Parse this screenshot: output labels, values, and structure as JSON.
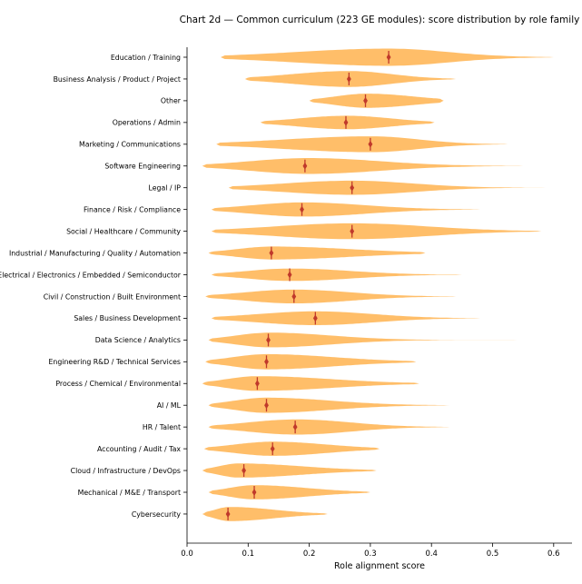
{
  "chart_data": {
    "type": "violin",
    "title": "Chart 2d — Common curriculum (223 GE modules): score distribution by role family",
    "xlabel": "Role alignment score",
    "ylabel": "",
    "xlim": [
      0.0,
      0.63
    ],
    "xticks": [
      "0.0",
      "0.1",
      "0.2",
      "0.3",
      "0.4",
      "0.5",
      "0.6"
    ],
    "orientation": "horizontal",
    "grid": false,
    "fill_color": "#ffb554",
    "median_marker_color": "#c0392b",
    "categories": [
      {
        "name": "Education / Training",
        "min": 0.055,
        "max": 0.6,
        "median": 0.33,
        "mode": 0.33,
        "width": 1.0,
        "tail": 0.36
      },
      {
        "name": "Business Analysis / Product / Project",
        "min": 0.095,
        "max": 0.44,
        "median": 0.265,
        "mode": 0.265,
        "width": 0.92,
        "tail": 0.4
      },
      {
        "name": "Other",
        "min": 0.2,
        "max": 0.42,
        "median": 0.292,
        "mode": 0.295,
        "width": 0.82,
        "tail": 0.6
      },
      {
        "name": "Operations / Admin",
        "min": 0.12,
        "max": 0.405,
        "median": 0.26,
        "mode": 0.262,
        "width": 0.78,
        "tail": 0.5
      },
      {
        "name": "Marketing / Communications",
        "min": 0.048,
        "max": 0.525,
        "median": 0.3,
        "mode": 0.3,
        "width": 0.92,
        "tail": 0.35
      },
      {
        "name": "Software Engineering",
        "min": 0.025,
        "max": 0.585,
        "median": 0.193,
        "mode": 0.2,
        "width": 0.92,
        "tail": 0.3
      },
      {
        "name": "Legal / IP",
        "min": 0.068,
        "max": 0.6,
        "median": 0.27,
        "mode": 0.27,
        "width": 0.82,
        "tail": 0.3
      },
      {
        "name": "Finance / Risk / Compliance",
        "min": 0.04,
        "max": 0.48,
        "median": 0.188,
        "mode": 0.19,
        "width": 0.82,
        "tail": 0.35
      },
      {
        "name": "Social / Healthcare / Community",
        "min": 0.04,
        "max": 0.58,
        "median": 0.27,
        "mode": 0.27,
        "width": 0.92,
        "tail": 0.4
      },
      {
        "name": "Industrial / Manufacturing / Quality / Automation",
        "min": 0.035,
        "max": 0.39,
        "median": 0.138,
        "mode": 0.14,
        "width": 0.75,
        "tail": 0.5
      },
      {
        "name": "Electrical / Electronics / Embedded / Semiconductor",
        "min": 0.04,
        "max": 0.45,
        "median": 0.168,
        "mode": 0.17,
        "width": 0.72,
        "tail": 0.35
      },
      {
        "name": "Civil / Construction / Built Environment",
        "min": 0.03,
        "max": 0.44,
        "median": 0.175,
        "mode": 0.175,
        "width": 0.8,
        "tail": 0.35
      },
      {
        "name": "Sales / Business Development",
        "min": 0.04,
        "max": 0.48,
        "median": 0.21,
        "mode": 0.21,
        "width": 0.8,
        "tail": 0.35
      },
      {
        "name": "Data Science / Analytics",
        "min": 0.035,
        "max": 0.54,
        "median": 0.133,
        "mode": 0.135,
        "width": 0.85,
        "tail": 0.25
      },
      {
        "name": "Engineering R&D / Technical Services",
        "min": 0.03,
        "max": 0.375,
        "median": 0.13,
        "mode": 0.13,
        "width": 0.88,
        "tail": 0.45
      },
      {
        "name": "Process / Chemical / Environmental",
        "min": 0.025,
        "max": 0.38,
        "median": 0.115,
        "mode": 0.115,
        "width": 0.85,
        "tail": 0.45
      },
      {
        "name": "AI / ML",
        "min": 0.035,
        "max": 0.43,
        "median": 0.13,
        "mode": 0.13,
        "width": 0.88,
        "tail": 0.35
      },
      {
        "name": "HR / Talent",
        "min": 0.035,
        "max": 0.43,
        "median": 0.177,
        "mode": 0.18,
        "width": 0.88,
        "tail": 0.35
      },
      {
        "name": "Accounting / Audit / Tax",
        "min": 0.028,
        "max": 0.315,
        "median": 0.14,
        "mode": 0.14,
        "width": 0.82,
        "tail": 0.5
      },
      {
        "name": "Cloud / Infrastructure / DevOps",
        "min": 0.025,
        "max": 0.31,
        "median": 0.093,
        "mode": 0.085,
        "width": 0.82,
        "tail": 0.45
      },
      {
        "name": "Mechanical / M&E / Transport",
        "min": 0.035,
        "max": 0.3,
        "median": 0.11,
        "mode": 0.11,
        "width": 0.82,
        "tail": 0.45
      },
      {
        "name": "Cybersecurity",
        "min": 0.025,
        "max": 0.23,
        "median": 0.067,
        "mode": 0.07,
        "width": 0.82,
        "tail": 0.45
      }
    ]
  }
}
